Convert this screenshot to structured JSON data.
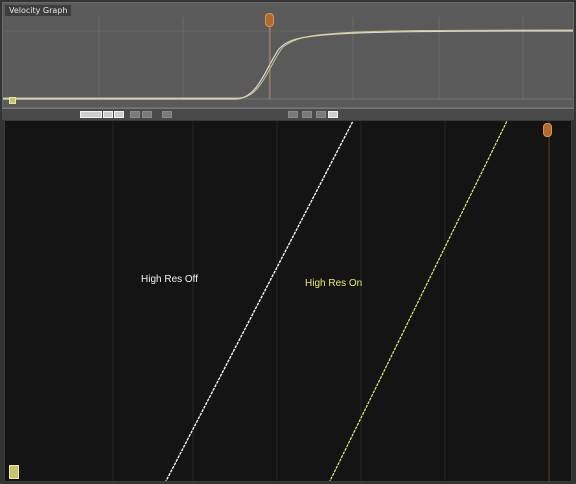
{
  "overview": {
    "title": "Velocity Graph",
    "ticks": [
      "",
      "",
      "",
      "",
      "",
      "",
      ""
    ],
    "readout": "",
    "key_label": ""
  },
  "graph": {
    "labels": {
      "off": "High Res Off",
      "on": "High Res On"
    },
    "colors": {
      "off": "#f2f2f2",
      "on": "#e9ef6a"
    },
    "bottom_ticks": [
      "",
      "",
      "",
      "",
      "",
      "",
      "",
      ""
    ]
  },
  "icons": {
    "playhead": "playhead-handle-icon",
    "key": "keyframe-icon"
  }
}
